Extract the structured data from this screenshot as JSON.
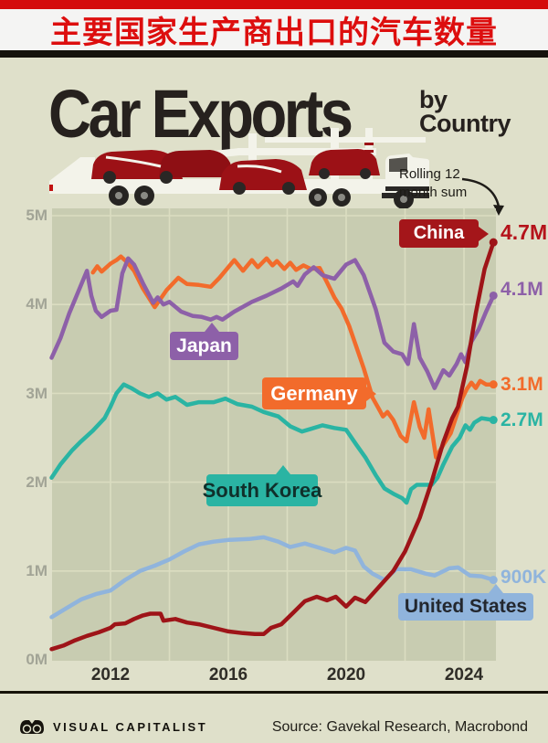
{
  "banner": {
    "title": "主要国家生产商出口的汽车数量",
    "bar_color": "#d40b0b",
    "text_color": "#dd0e0e"
  },
  "header": {
    "title": "Car Exports",
    "subtitle_line1": "by",
    "subtitle_line2": "Country"
  },
  "note": {
    "line1": "Rolling 12",
    "line2": "month sum"
  },
  "chart_data": {
    "type": "line",
    "title": "Car Exports by Country",
    "subtitle": "Rolling 12 month sum",
    "unit": "vehicles, rolling 12-month sum (millions)",
    "grid": true,
    "plot_bg": "#c8ccb1",
    "grid_color": "#dbddc1",
    "x_axis": {
      "range": [
        2010,
        2025.1
      ],
      "gridline_years": [
        2012,
        2014,
        2016,
        2018,
        2020,
        2022,
        2024
      ],
      "tick_years": [
        2012,
        2016,
        2020,
        2024
      ],
      "tick_labels": [
        "2012",
        "2016",
        "2020",
        "2024"
      ]
    },
    "y_axis": {
      "range": [
        0,
        5.1
      ],
      "tick_values": [
        5,
        4,
        3,
        2,
        1,
        0
      ],
      "tick_labels": [
        "5M",
        "4M",
        "3M",
        "2M",
        "1M",
        "0M"
      ]
    },
    "legend_position": "on-line-labels",
    "series": [
      {
        "name": "China",
        "color": "#9e1418",
        "label_bg": "#a4161a",
        "label_fg": "#ffffff",
        "end_label": "4.7M",
        "end_value": 4.7,
        "end_color": "#b5121a",
        "points": [
          [
            2010,
            0.12
          ],
          [
            2010.4,
            0.16
          ],
          [
            2010.8,
            0.22
          ],
          [
            2011.2,
            0.27
          ],
          [
            2011.6,
            0.31
          ],
          [
            2012,
            0.36
          ],
          [
            2012.15,
            0.4
          ],
          [
            2012.5,
            0.41
          ],
          [
            2012.8,
            0.46
          ],
          [
            2013.1,
            0.5
          ],
          [
            2013.35,
            0.52
          ],
          [
            2013.7,
            0.52
          ],
          [
            2013.8,
            0.44
          ],
          [
            2014.2,
            0.46
          ],
          [
            2014.6,
            0.42
          ],
          [
            2015,
            0.4
          ],
          [
            2015.5,
            0.36
          ],
          [
            2016,
            0.32
          ],
          [
            2016.5,
            0.3
          ],
          [
            2016.9,
            0.29
          ],
          [
            2017.2,
            0.29
          ],
          [
            2017.45,
            0.36
          ],
          [
            2017.8,
            0.4
          ],
          [
            2018.2,
            0.53
          ],
          [
            2018.6,
            0.66
          ],
          [
            2019,
            0.71
          ],
          [
            2019.35,
            0.67
          ],
          [
            2019.65,
            0.71
          ],
          [
            2020,
            0.6
          ],
          [
            2020.3,
            0.7
          ],
          [
            2020.65,
            0.65
          ],
          [
            2021,
            0.78
          ],
          [
            2021.6,
            1.0
          ],
          [
            2022,
            1.22
          ],
          [
            2022.5,
            1.6
          ],
          [
            2022.9,
            2.0
          ],
          [
            2023.3,
            2.45
          ],
          [
            2023.6,
            2.72
          ],
          [
            2023.8,
            2.85
          ],
          [
            2024.1,
            3.3
          ],
          [
            2024.4,
            3.9
          ],
          [
            2024.7,
            4.4
          ],
          [
            2025,
            4.7
          ]
        ]
      },
      {
        "name": "Japan",
        "color": "#8d60a8",
        "label_bg": "#8d60a8",
        "label_fg": "#ffffff",
        "end_label": "4.1M",
        "end_value": 4.1,
        "points": [
          [
            2010,
            3.4
          ],
          [
            2010.3,
            3.62
          ],
          [
            2010.6,
            3.9
          ],
          [
            2010.9,
            4.14
          ],
          [
            2011.2,
            4.38
          ],
          [
            2011.35,
            4.1
          ],
          [
            2011.5,
            3.93
          ],
          [
            2011.7,
            3.86
          ],
          [
            2012,
            3.93
          ],
          [
            2012.2,
            3.94
          ],
          [
            2012.4,
            4.35
          ],
          [
            2012.6,
            4.52
          ],
          [
            2012.8,
            4.45
          ],
          [
            2013.1,
            4.24
          ],
          [
            2013.45,
            4.02
          ],
          [
            2013.6,
            4.08
          ],
          [
            2013.8,
            4.0
          ],
          [
            2014,
            4.03
          ],
          [
            2014.4,
            3.92
          ],
          [
            2014.8,
            3.87
          ],
          [
            2015.1,
            3.86
          ],
          [
            2015.4,
            3.83
          ],
          [
            2015.6,
            3.86
          ],
          [
            2015.8,
            3.83
          ],
          [
            2016.2,
            3.92
          ],
          [
            2016.8,
            4.03
          ],
          [
            2017.3,
            4.1
          ],
          [
            2017.8,
            4.18
          ],
          [
            2018.2,
            4.26
          ],
          [
            2018.35,
            4.21
          ],
          [
            2018.6,
            4.34
          ],
          [
            2018.9,
            4.42
          ],
          [
            2019.2,
            4.33
          ],
          [
            2019.6,
            4.29
          ],
          [
            2020,
            4.45
          ],
          [
            2020.3,
            4.5
          ],
          [
            2020.6,
            4.33
          ],
          [
            2021,
            3.95
          ],
          [
            2021.3,
            3.57
          ],
          [
            2021.6,
            3.47
          ],
          [
            2021.9,
            3.44
          ],
          [
            2022.1,
            3.33
          ],
          [
            2022.3,
            3.78
          ],
          [
            2022.5,
            3.4
          ],
          [
            2022.75,
            3.25
          ],
          [
            2023,
            3.06
          ],
          [
            2023.3,
            3.26
          ],
          [
            2023.5,
            3.2
          ],
          [
            2023.75,
            3.33
          ],
          [
            2023.9,
            3.44
          ],
          [
            2024.05,
            3.35
          ],
          [
            2024.25,
            3.58
          ],
          [
            2024.5,
            3.72
          ],
          [
            2024.75,
            3.92
          ],
          [
            2025,
            4.1
          ]
        ]
      },
      {
        "name": "Germany",
        "color": "#f26b2b",
        "label_bg": "#f26b2b",
        "label_fg": "#ffffff",
        "end_label": "3.1M",
        "end_value": 3.1,
        "points": [
          [
            2011.4,
            4.36
          ],
          [
            2011.55,
            4.43
          ],
          [
            2011.7,
            4.37
          ],
          [
            2012,
            4.46
          ],
          [
            2012.2,
            4.5
          ],
          [
            2012.35,
            4.54
          ],
          [
            2012.55,
            4.48
          ],
          [
            2012.8,
            4.38
          ],
          [
            2013.1,
            4.18
          ],
          [
            2013.5,
            3.97
          ],
          [
            2013.9,
            4.16
          ],
          [
            2014.3,
            4.3
          ],
          [
            2014.6,
            4.23
          ],
          [
            2015,
            4.22
          ],
          [
            2015.4,
            4.2
          ],
          [
            2015.7,
            4.3
          ],
          [
            2016.2,
            4.5
          ],
          [
            2016.5,
            4.38
          ],
          [
            2016.8,
            4.5
          ],
          [
            2017,
            4.42
          ],
          [
            2017.3,
            4.52
          ],
          [
            2017.5,
            4.44
          ],
          [
            2017.65,
            4.49
          ],
          [
            2017.9,
            4.4
          ],
          [
            2018.1,
            4.47
          ],
          [
            2018.3,
            4.39
          ],
          [
            2018.55,
            4.44
          ],
          [
            2018.8,
            4.4
          ],
          [
            2019.1,
            4.41
          ],
          [
            2019.35,
            4.25
          ],
          [
            2019.6,
            4.08
          ],
          [
            2019.85,
            3.95
          ],
          [
            2020.1,
            3.76
          ],
          [
            2020.35,
            3.52
          ],
          [
            2020.6,
            3.28
          ],
          [
            2020.9,
            2.95
          ],
          [
            2021.1,
            2.83
          ],
          [
            2021.25,
            2.74
          ],
          [
            2021.4,
            2.79
          ],
          [
            2021.6,
            2.7
          ],
          [
            2021.85,
            2.52
          ],
          [
            2022.05,
            2.46
          ],
          [
            2022.3,
            2.9
          ],
          [
            2022.5,
            2.62
          ],
          [
            2022.65,
            2.5
          ],
          [
            2022.8,
            2.82
          ],
          [
            2023.05,
            2.28
          ],
          [
            2023.3,
            2.42
          ],
          [
            2023.55,
            2.55
          ],
          [
            2023.75,
            2.75
          ],
          [
            2023.95,
            2.95
          ],
          [
            2024.1,
            3.05
          ],
          [
            2024.25,
            3.12
          ],
          [
            2024.4,
            3.06
          ],
          [
            2024.55,
            3.14
          ],
          [
            2024.75,
            3.1
          ],
          [
            2025,
            3.1
          ]
        ]
      },
      {
        "name": "South Korea",
        "color": "#2ab4a3",
        "label_bg": "#2ab4a3",
        "label_fg": "#10302b",
        "end_label": "2.7M",
        "end_value": 2.7,
        "points": [
          [
            2010,
            2.05
          ],
          [
            2010.3,
            2.2
          ],
          [
            2010.7,
            2.36
          ],
          [
            2011,
            2.46
          ],
          [
            2011.4,
            2.58
          ],
          [
            2011.8,
            2.72
          ],
          [
            2012,
            2.85
          ],
          [
            2012.2,
            3.0
          ],
          [
            2012.45,
            3.1
          ],
          [
            2012.7,
            3.06
          ],
          [
            2013,
            3.0
          ],
          [
            2013.3,
            2.96
          ],
          [
            2013.6,
            3.0
          ],
          [
            2013.9,
            2.93
          ],
          [
            2014.2,
            2.96
          ],
          [
            2014.6,
            2.87
          ],
          [
            2015,
            2.9
          ],
          [
            2015.5,
            2.9
          ],
          [
            2015.9,
            2.94
          ],
          [
            2016.3,
            2.88
          ],
          [
            2016.8,
            2.85
          ],
          [
            2017.2,
            2.79
          ],
          [
            2017.7,
            2.74
          ],
          [
            2018.1,
            2.63
          ],
          [
            2018.5,
            2.57
          ],
          [
            2018.8,
            2.6
          ],
          [
            2019.2,
            2.64
          ],
          [
            2019.6,
            2.61
          ],
          [
            2020,
            2.59
          ],
          [
            2020.35,
            2.42
          ],
          [
            2020.65,
            2.28
          ],
          [
            2021,
            2.08
          ],
          [
            2021.3,
            1.93
          ],
          [
            2021.6,
            1.87
          ],
          [
            2021.9,
            1.82
          ],
          [
            2022.05,
            1.77
          ],
          [
            2022.2,
            1.92
          ],
          [
            2022.4,
            1.97
          ],
          [
            2022.9,
            1.97
          ],
          [
            2023.1,
            2.05
          ],
          [
            2023.3,
            2.2
          ],
          [
            2023.6,
            2.4
          ],
          [
            2023.85,
            2.5
          ],
          [
            2024.05,
            2.64
          ],
          [
            2024.2,
            2.59
          ],
          [
            2024.35,
            2.67
          ],
          [
            2024.6,
            2.72
          ],
          [
            2025,
            2.7
          ]
        ]
      },
      {
        "name": "United States",
        "color": "#90b4dc",
        "label_bg": "#90b4dc",
        "label_fg": "#23272e",
        "end_label": "900K",
        "end_value": 0.9,
        "points": [
          [
            2010,
            0.48
          ],
          [
            2010.5,
            0.58
          ],
          [
            2011,
            0.68
          ],
          [
            2011.5,
            0.74
          ],
          [
            2012,
            0.78
          ],
          [
            2012.5,
            0.9
          ],
          [
            2013,
            1.0
          ],
          [
            2013.5,
            1.06
          ],
          [
            2014,
            1.13
          ],
          [
            2014.5,
            1.22
          ],
          [
            2015,
            1.3
          ],
          [
            2015.5,
            1.33
          ],
          [
            2016,
            1.35
          ],
          [
            2016.7,
            1.36
          ],
          [
            2017.2,
            1.38
          ],
          [
            2017.7,
            1.33
          ],
          [
            2018.1,
            1.27
          ],
          [
            2018.6,
            1.31
          ],
          [
            2019.1,
            1.26
          ],
          [
            2019.6,
            1.21
          ],
          [
            2020,
            1.26
          ],
          [
            2020.3,
            1.23
          ],
          [
            2020.6,
            1.05
          ],
          [
            2020.9,
            0.97
          ],
          [
            2021.3,
            0.9
          ],
          [
            2021.7,
            1.02
          ],
          [
            2022.2,
            1.02
          ],
          [
            2022.7,
            0.97
          ],
          [
            2023,
            0.95
          ],
          [
            2023.5,
            1.03
          ],
          [
            2023.8,
            1.04
          ],
          [
            2024.2,
            0.95
          ],
          [
            2024.6,
            0.94
          ],
          [
            2025,
            0.9
          ]
        ]
      }
    ]
  },
  "footer": {
    "brand": "VISUAL CAPITALIST",
    "source": "Source: Gavekal Research, Macrobond"
  }
}
